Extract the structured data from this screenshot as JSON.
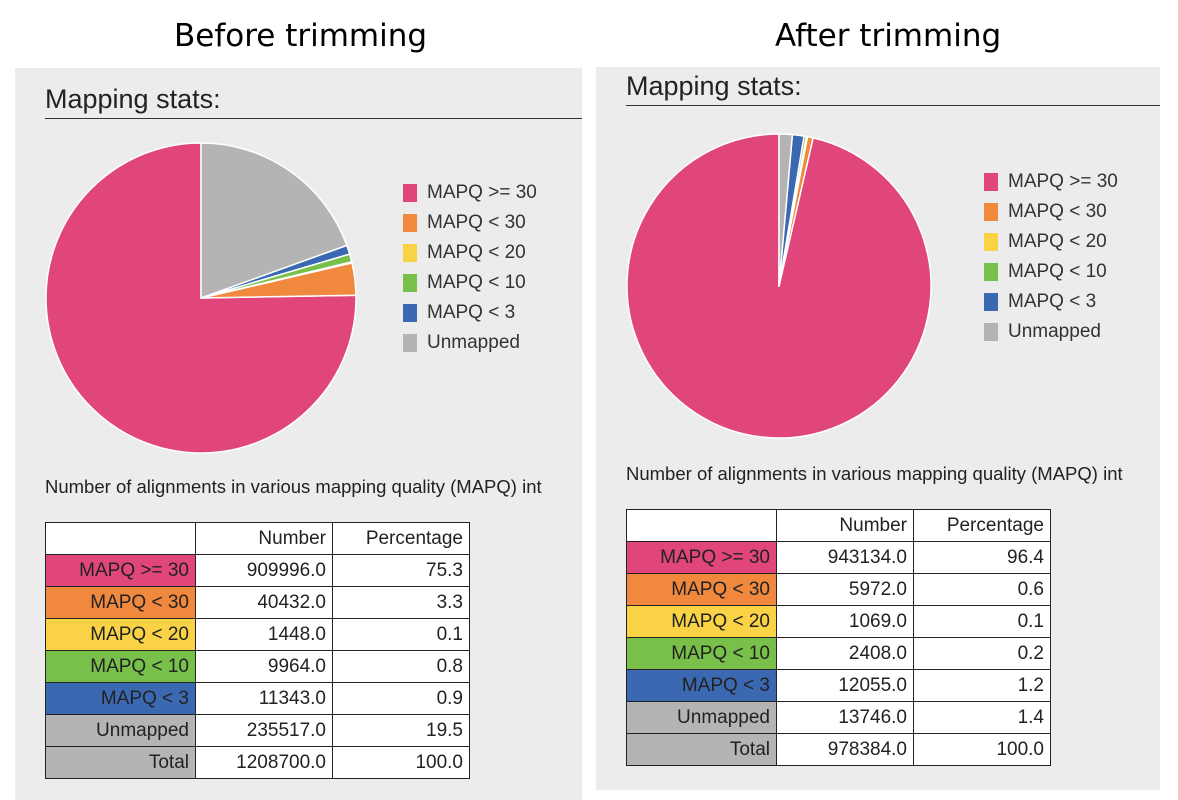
{
  "left": {
    "heading": "Before trimming",
    "title": "Mapping stats:",
    "caption": "Number of alignments in various mapping quality (MAPQ) int",
    "header": [
      "",
      "Number",
      "Percentage"
    ],
    "rows": [
      {
        "label": "MAPQ >= 30",
        "number": "909996.0",
        "percent": "75.3"
      },
      {
        "label": "MAPQ < 30",
        "number": "40432.0",
        "percent": "3.3"
      },
      {
        "label": "MAPQ < 20",
        "number": "1448.0",
        "percent": "0.1"
      },
      {
        "label": "MAPQ < 10",
        "number": "9964.0",
        "percent": "0.8"
      },
      {
        "label": "MAPQ < 3",
        "number": "11343.0",
        "percent": "0.9"
      },
      {
        "label": "Unmapped",
        "number": "235517.0",
        "percent": "19.5"
      },
      {
        "label": "Total",
        "number": "1208700.0",
        "percent": "100.0"
      }
    ]
  },
  "right": {
    "heading": "After trimming",
    "title": "Mapping stats:",
    "caption": "Number of alignments in various mapping quality (MAPQ) int",
    "header": [
      "",
      "Number",
      "Percentage"
    ],
    "rows": [
      {
        "label": "MAPQ >= 30",
        "number": "943134.0",
        "percent": "96.4"
      },
      {
        "label": "MAPQ < 30",
        "number": "5972.0",
        "percent": "0.6"
      },
      {
        "label": "MAPQ < 20",
        "number": "1069.0",
        "percent": "0.1"
      },
      {
        "label": "MAPQ < 10",
        "number": "2408.0",
        "percent": "0.2"
      },
      {
        "label": "MAPQ < 3",
        "number": "12055.0",
        "percent": "1.2"
      },
      {
        "label": "Unmapped",
        "number": "13746.0",
        "percent": "1.4"
      },
      {
        "label": "Total",
        "number": "978384.0",
        "percent": "100.0"
      }
    ]
  },
  "colors": {
    "MAPQ >= 30": "#e0457b",
    "MAPQ < 30": "#f0883e",
    "MAPQ < 20": "#f9d345",
    "MAPQ < 10": "#78c04a",
    "MAPQ < 3": "#3a69b2",
    "Unmapped": "#b4b4b4",
    "Total": "#b4b4b4"
  },
  "chart_data": [
    {
      "type": "pie",
      "title": "Mapping stats:",
      "categories": [
        "MAPQ >= 30",
        "MAPQ < 30",
        "MAPQ < 20",
        "MAPQ < 10",
        "MAPQ < 3",
        "Unmapped"
      ],
      "values": [
        909996,
        40432,
        1448,
        9964,
        11343,
        235517
      ],
      "legend": "right"
    },
    {
      "type": "pie",
      "title": "Mapping stats:",
      "categories": [
        "MAPQ >= 30",
        "MAPQ < 30",
        "MAPQ < 20",
        "MAPQ < 10",
        "MAPQ < 3",
        "Unmapped"
      ],
      "values": [
        943134,
        5972,
        1069,
        2408,
        12055,
        13746
      ],
      "legend": "right"
    }
  ]
}
